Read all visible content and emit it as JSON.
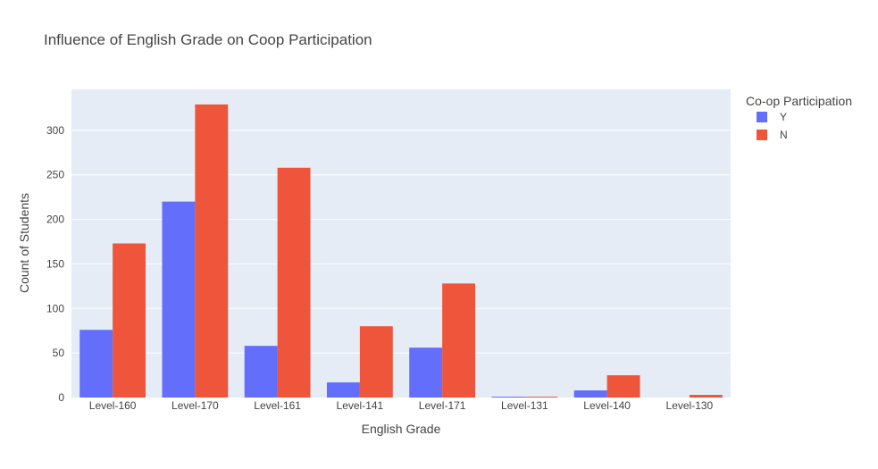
{
  "chart_data": {
    "type": "bar",
    "title": "Influence of English Grade on Coop Participation",
    "xlabel": "English Grade",
    "ylabel": "Count of Students",
    "categories": [
      "Level-160",
      "Level-170",
      "Level-161",
      "Level-141",
      "Level-171",
      "Level-131",
      "Level-140",
      "Level-130"
    ],
    "series": [
      {
        "name": "Y",
        "color": "#636efa",
        "values": [
          76,
          220,
          58,
          17,
          56,
          1,
          8,
          0
        ]
      },
      {
        "name": "N",
        "color": "#ef553b",
        "values": [
          173,
          329,
          258,
          80,
          128,
          1,
          25,
          3
        ]
      }
    ],
    "ylim": [
      0,
      346
    ],
    "yticks": [
      0,
      50,
      100,
      150,
      200,
      250,
      300
    ],
    "legend_title": "Co-op Participation",
    "legend_position": "top-right",
    "grid": true,
    "colors": {
      "plot_background": "#e5ecf6",
      "grid": "#ffffff",
      "text": "#444444"
    }
  }
}
